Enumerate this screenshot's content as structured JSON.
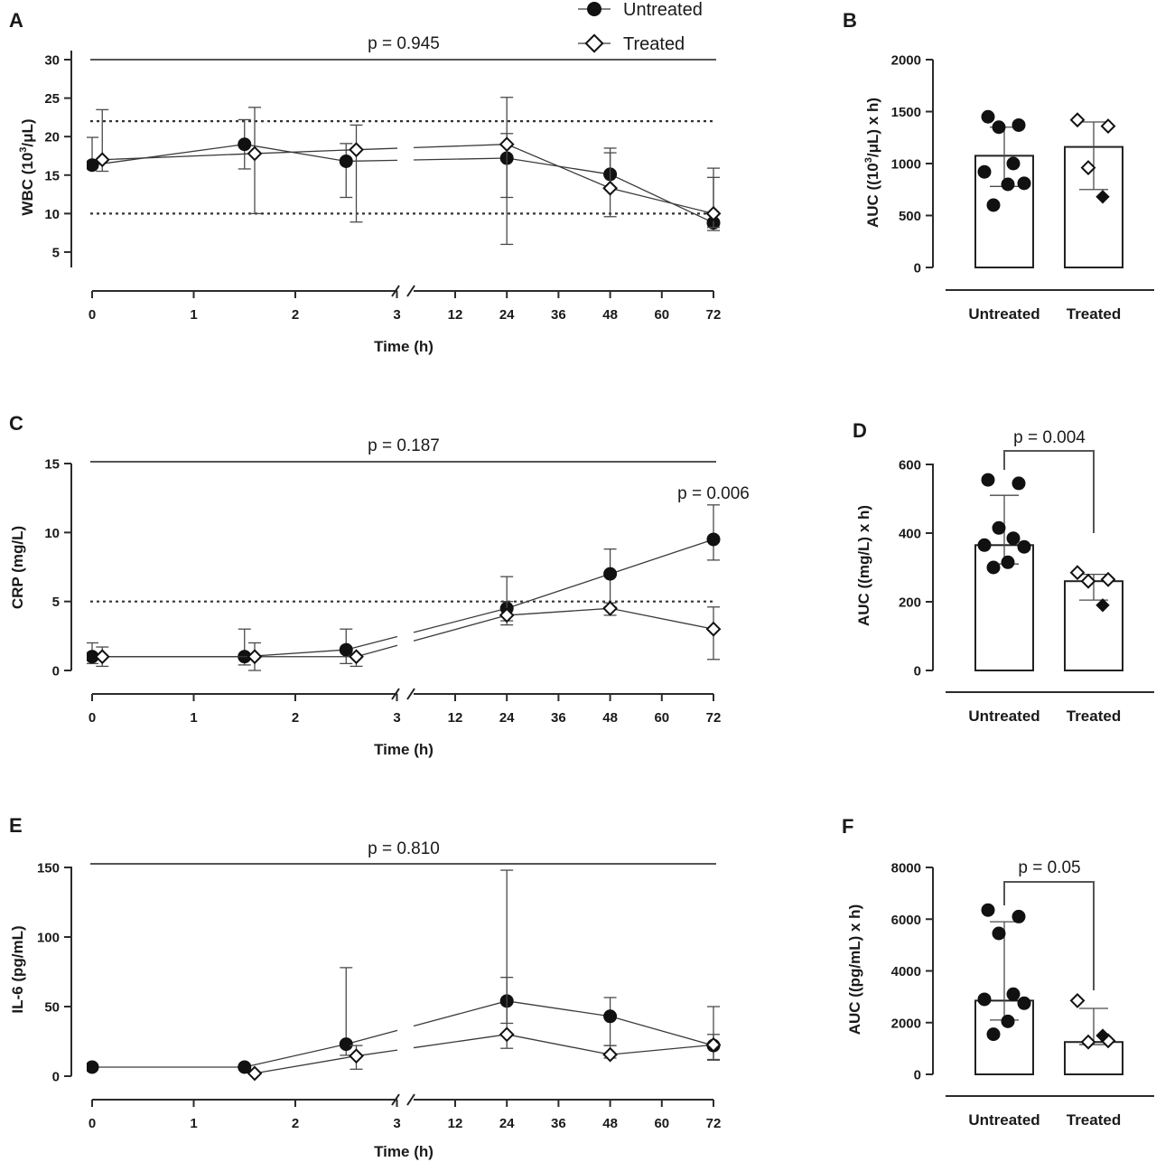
{
  "legend": {
    "untreated": "Untreated",
    "treated": "Treated"
  },
  "chart_data": [
    {
      "panel": "A",
      "type": "line",
      "x": [
        "0",
        "1",
        "2",
        "3",
        "12",
        "24",
        "36",
        "48",
        "60",
        "72"
      ],
      "xlabel": "Time (h)",
      "ylabel_main": "WBC (10",
      "ylabel_sup": "3",
      "ylabel_tail": "/μL)",
      "ylim": [
        3,
        30
      ],
      "yticks": [
        "5",
        "10",
        "15",
        "20",
        "25",
        "30"
      ],
      "reference_lines": [
        10,
        22
      ],
      "p_overall": "p = 0.945",
      "series": [
        {
          "name": "Untreated",
          "points": [
            [
              0,
              16.3,
              16.0,
              19.9
            ],
            [
              1.5,
              19.0,
              15.8,
              22.2
            ],
            [
              2.5,
              16.8,
              12.1,
              19.1
            ],
            [
              24,
              17.2,
              6.0,
              20.4
            ],
            [
              48,
              15.1,
              13.4,
              18.5
            ],
            [
              72,
              8.8,
              7.8,
              14.7
            ]
          ]
        },
        {
          "name": "Treated",
          "points": [
            [
              0.1,
              17.0,
              15.5,
              23.5
            ],
            [
              1.6,
              17.8,
              10.0,
              23.8
            ],
            [
              2.6,
              18.3,
              8.9,
              21.5
            ],
            [
              24,
              19.0,
              12.1,
              25.1
            ],
            [
              48,
              13.3,
              9.6,
              17.9
            ],
            [
              72,
              10.0,
              8.2,
              15.9
            ]
          ]
        }
      ]
    },
    {
      "panel": "B",
      "type": "bar",
      "categories": [
        "Untreated",
        "Treated"
      ],
      "values": [
        1075,
        1160
      ],
      "errors": [
        [
          780,
          1350
        ],
        [
          750,
          1400
        ]
      ],
      "ylabel": "AUC ((10",
      "ylabel_sup": "3",
      "ylabel_tail": "/μL) x h)",
      "ylim": [
        0,
        2000
      ],
      "yticks": [
        "0",
        "500",
        "1000",
        "1500",
        "2000"
      ],
      "points": [
        [
          1450,
          1370,
          1350,
          1000,
          920,
          810,
          800,
          600
        ],
        [
          1420,
          1360,
          960,
          680
        ]
      ]
    },
    {
      "panel": "C",
      "type": "line",
      "x": [
        "0",
        "1",
        "2",
        "3",
        "12",
        "24",
        "36",
        "48",
        "60",
        "72"
      ],
      "xlabel": "Time (h)",
      "ylabel": "CRP (mg/L)",
      "ylim": [
        0,
        15
      ],
      "yticks": [
        "0",
        "5",
        "10",
        "15"
      ],
      "reference_lines": [
        5
      ],
      "p_overall": "p = 0.187",
      "p_timepoint": "p = 0.006",
      "series": [
        {
          "name": "Untreated",
          "points": [
            [
              0,
              1.0,
              0.5,
              2.0
            ],
            [
              1.5,
              1.0,
              0.4,
              3.0
            ],
            [
              2.5,
              1.5,
              0.5,
              3.0
            ],
            [
              24,
              4.5,
              3.6,
              6.8
            ],
            [
              48,
              7.0,
              4.6,
              8.8
            ],
            [
              72,
              9.5,
              8.0,
              12.0
            ]
          ]
        },
        {
          "name": "Treated",
          "points": [
            [
              0.1,
              1.0,
              0.3,
              1.7
            ],
            [
              1.6,
              1.0,
              0.0,
              2.0
            ],
            [
              2.6,
              1.0,
              0.3,
              1.0
            ],
            [
              24,
              4.0,
              3.3,
              5.0
            ],
            [
              48,
              4.5,
              4.0,
              4.9
            ],
            [
              72,
              3.0,
              0.8,
              4.6
            ]
          ]
        }
      ]
    },
    {
      "panel": "D",
      "type": "bar",
      "categories": [
        "Untreated",
        "Treated"
      ],
      "values": [
        365,
        260
      ],
      "errors": [
        [
          310,
          510
        ],
        [
          205,
          280
        ]
      ],
      "ylabel": "AUC ((mg/L) x h)",
      "ylim": [
        0,
        600
      ],
      "yticks": [
        "0",
        "200",
        "400",
        "600"
      ],
      "p_value": "p = 0.004",
      "points": [
        [
          555,
          545,
          415,
          385,
          365,
          360,
          315,
          300
        ],
        [
          285,
          265,
          260,
          190
        ]
      ]
    },
    {
      "panel": "E",
      "type": "line",
      "x": [
        "0",
        "1",
        "2",
        "3",
        "12",
        "24",
        "36",
        "48",
        "60",
        "72"
      ],
      "xlabel": "Time (h)",
      "ylabel": "IL-6 (pg/mL)",
      "ylim": [
        0,
        150
      ],
      "yticks": [
        "0",
        "50",
        "100",
        "150"
      ],
      "p_overall": "p = 0.810",
      "series": [
        {
          "name": "Untreated",
          "points": [
            [
              0,
              6.5,
              6.5,
              6.5
            ],
            [
              1.5,
              6.5,
              6.5,
              6.5
            ],
            [
              2.5,
              23.0,
              15.0,
              78.0
            ],
            [
              24,
              54.0,
              38.0,
              148.0
            ],
            [
              48,
              43.0,
              22.0,
              56.5
            ],
            [
              72,
              22.0,
              11.5,
              30.0
            ]
          ]
        },
        {
          "name": "Treated",
          "points": [
            [
              1.6,
              2.0,
              2.0,
              2.0
            ],
            [
              2.6,
              14.5,
              5.0,
              22.0
            ],
            [
              24,
              30.0,
              20.0,
              71.0
            ],
            [
              48,
              15.5,
              13.0,
              22.0
            ],
            [
              72,
              22.5,
              12.0,
              50.0
            ]
          ]
        }
      ]
    },
    {
      "panel": "F",
      "type": "bar",
      "categories": [
        "Untreated",
        "Treated"
      ],
      "values": [
        2850,
        1250
      ],
      "errors": [
        [
          2100,
          5900
        ],
        [
          1150,
          2550
        ]
      ],
      "ylabel": "AUC ((pg/mL) x h)",
      "ylim": [
        0,
        8000
      ],
      "yticks": [
        "0",
        "2000",
        "4000",
        "6000",
        "8000"
      ],
      "p_value": "p = 0.05",
      "points": [
        [
          6350,
          6100,
          5450,
          3100,
          2900,
          2750,
          2050,
          1550
        ],
        [
          2850,
          1300,
          1250,
          1500
        ]
      ]
    }
  ]
}
